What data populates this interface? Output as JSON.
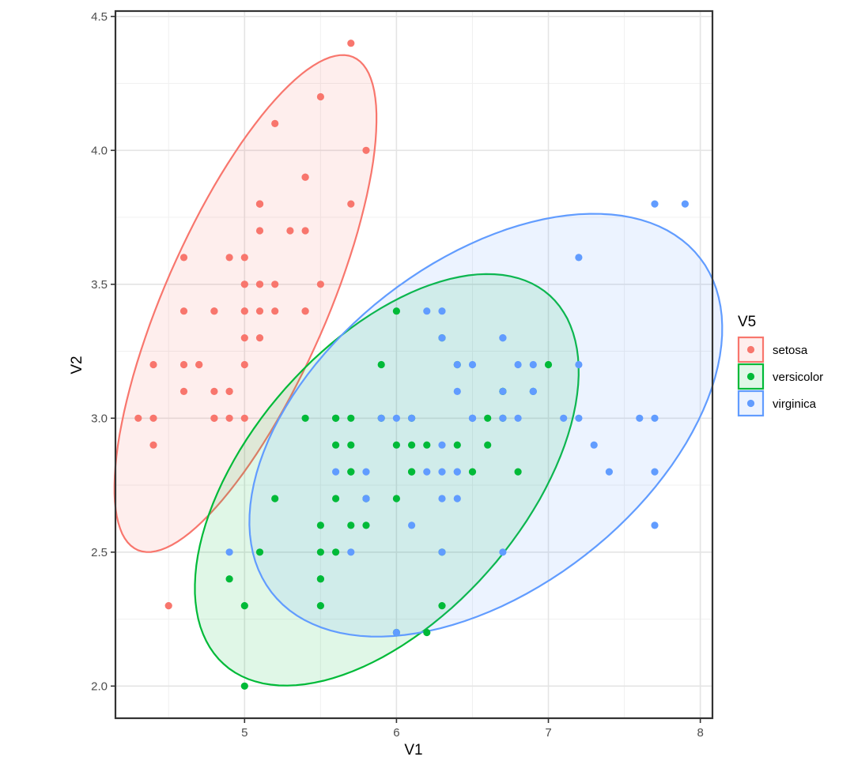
{
  "chart_data": {
    "type": "scatter",
    "xlabel": "V1",
    "ylabel": "V2",
    "xlim": [
      4.15,
      8.08
    ],
    "ylim": [
      1.88,
      4.52
    ],
    "x_ticks": [
      5,
      6,
      7,
      8
    ],
    "x_tick_labels": [
      "5",
      "6",
      "7",
      "8"
    ],
    "y_ticks": [
      2.0,
      2.5,
      3.0,
      3.5,
      4.0,
      4.5
    ],
    "y_tick_labels": [
      "2.0",
      "2.5",
      "3.0",
      "3.5",
      "4.0",
      "4.5"
    ],
    "grid": true,
    "legend": {
      "title": "V5",
      "position": "right"
    },
    "series": [
      {
        "name": "setosa",
        "color": "#F8766D",
        "ellipse": {
          "center": [
            5.006,
            3.428
          ],
          "cov": [
            [
              0.1242,
              0.0992
            ],
            [
              0.0992,
              0.1437
            ]
          ]
        },
        "points": [
          [
            5.1,
            3.5
          ],
          [
            4.9,
            3.0
          ],
          [
            4.7,
            3.2
          ],
          [
            4.6,
            3.1
          ],
          [
            5.0,
            3.6
          ],
          [
            5.4,
            3.9
          ],
          [
            4.6,
            3.4
          ],
          [
            5.0,
            3.4
          ],
          [
            4.4,
            2.9
          ],
          [
            4.9,
            3.1
          ],
          [
            5.4,
            3.7
          ],
          [
            4.8,
            3.4
          ],
          [
            4.8,
            3.0
          ],
          [
            4.3,
            3.0
          ],
          [
            5.8,
            4.0
          ],
          [
            5.7,
            4.4
          ],
          [
            5.4,
            3.9
          ],
          [
            5.1,
            3.5
          ],
          [
            5.7,
            3.8
          ],
          [
            5.1,
            3.8
          ],
          [
            5.4,
            3.4
          ],
          [
            5.1,
            3.7
          ],
          [
            4.6,
            3.6
          ],
          [
            5.1,
            3.3
          ],
          [
            4.8,
            3.4
          ],
          [
            5.0,
            3.0
          ],
          [
            5.0,
            3.4
          ],
          [
            5.2,
            3.5
          ],
          [
            5.2,
            3.4
          ],
          [
            4.7,
            3.2
          ],
          [
            4.8,
            3.1
          ],
          [
            5.4,
            3.4
          ],
          [
            5.2,
            4.1
          ],
          [
            5.5,
            4.2
          ],
          [
            4.9,
            3.1
          ],
          [
            5.0,
            3.2
          ],
          [
            5.5,
            3.5
          ],
          [
            4.9,
            3.6
          ],
          [
            4.4,
            3.0
          ],
          [
            5.1,
            3.4
          ],
          [
            5.0,
            3.5
          ],
          [
            4.5,
            2.3
          ],
          [
            4.4,
            3.2
          ],
          [
            5.0,
            3.5
          ],
          [
            5.1,
            3.8
          ],
          [
            4.8,
            3.0
          ],
          [
            5.1,
            3.8
          ],
          [
            4.6,
            3.2
          ],
          [
            5.3,
            3.7
          ],
          [
            5.0,
            3.3
          ]
        ]
      },
      {
        "name": "versicolor",
        "color": "#00BA38",
        "ellipse": {
          "center": [
            5.936,
            2.77
          ],
          "cov": [
            [
              0.2664,
              0.0852
            ],
            [
              0.0852,
              0.0985
            ]
          ]
        },
        "points": [
          [
            7.0,
            3.2
          ],
          [
            6.4,
            3.2
          ],
          [
            6.9,
            3.1
          ],
          [
            5.5,
            2.3
          ],
          [
            6.5,
            2.8
          ],
          [
            5.7,
            2.8
          ],
          [
            6.3,
            3.3
          ],
          [
            4.9,
            2.4
          ],
          [
            6.6,
            2.9
          ],
          [
            5.2,
            2.7
          ],
          [
            5.0,
            2.0
          ],
          [
            5.9,
            3.0
          ],
          [
            6.0,
            2.2
          ],
          [
            6.1,
            2.9
          ],
          [
            5.6,
            2.9
          ],
          [
            6.7,
            3.1
          ],
          [
            5.6,
            3.0
          ],
          [
            5.8,
            2.7
          ],
          [
            6.2,
            2.2
          ],
          [
            5.6,
            2.5
          ],
          [
            5.9,
            3.2
          ],
          [
            6.1,
            2.8
          ],
          [
            6.3,
            2.5
          ],
          [
            6.1,
            2.8
          ],
          [
            6.4,
            2.9
          ],
          [
            6.6,
            3.0
          ],
          [
            6.8,
            2.8
          ],
          [
            6.7,
            3.0
          ],
          [
            6.0,
            2.9
          ],
          [
            5.7,
            2.6
          ],
          [
            5.5,
            2.4
          ],
          [
            5.5,
            2.4
          ],
          [
            5.8,
            2.7
          ],
          [
            6.0,
            2.7
          ],
          [
            5.4,
            3.0
          ],
          [
            6.0,
            3.4
          ],
          [
            6.7,
            3.1
          ],
          [
            6.3,
            2.3
          ],
          [
            5.6,
            3.0
          ],
          [
            5.5,
            2.5
          ],
          [
            5.5,
            2.6
          ],
          [
            6.1,
            3.0
          ],
          [
            5.8,
            2.6
          ],
          [
            5.0,
            2.3
          ],
          [
            5.6,
            2.7
          ],
          [
            5.7,
            3.0
          ],
          [
            5.7,
            2.9
          ],
          [
            6.2,
            2.9
          ],
          [
            5.1,
            2.5
          ],
          [
            5.7,
            2.8
          ]
        ]
      },
      {
        "name": "virginica",
        "color": "#619CFF",
        "ellipse": {
          "center": [
            6.588,
            2.974
          ],
          "cov": [
            [
              0.4043,
              0.0938
            ],
            [
              0.0938,
              0.104
            ]
          ]
        },
        "points": [
          [
            6.3,
            3.3
          ],
          [
            5.8,
            2.7
          ],
          [
            7.1,
            3.0
          ],
          [
            6.3,
            2.9
          ],
          [
            6.5,
            3.0
          ],
          [
            7.6,
            3.0
          ],
          [
            4.9,
            2.5
          ],
          [
            7.3,
            2.9
          ],
          [
            6.7,
            2.5
          ],
          [
            7.2,
            3.6
          ],
          [
            6.5,
            3.2
          ],
          [
            6.4,
            2.7
          ],
          [
            6.8,
            3.0
          ],
          [
            5.7,
            2.5
          ],
          [
            5.8,
            2.8
          ],
          [
            6.4,
            3.2
          ],
          [
            6.5,
            3.0
          ],
          [
            7.7,
            3.8
          ],
          [
            7.7,
            2.6
          ],
          [
            6.0,
            2.2
          ],
          [
            6.9,
            3.2
          ],
          [
            5.6,
            2.8
          ],
          [
            7.7,
            2.8
          ],
          [
            6.3,
            2.7
          ],
          [
            6.7,
            3.3
          ],
          [
            7.2,
            3.2
          ],
          [
            6.2,
            2.8
          ],
          [
            6.1,
            3.0
          ],
          [
            6.4,
            2.8
          ],
          [
            7.2,
            3.0
          ],
          [
            7.4,
            2.8
          ],
          [
            7.9,
            3.8
          ],
          [
            6.4,
            2.8
          ],
          [
            6.3,
            2.8
          ],
          [
            6.1,
            2.6
          ],
          [
            7.7,
            3.0
          ],
          [
            6.3,
            3.4
          ],
          [
            6.4,
            3.1
          ],
          [
            6.0,
            3.0
          ],
          [
            6.9,
            3.1
          ],
          [
            6.7,
            3.1
          ],
          [
            6.9,
            3.1
          ],
          [
            5.8,
            2.7
          ],
          [
            6.8,
            3.2
          ],
          [
            6.7,
            3.3
          ],
          [
            6.7,
            3.0
          ],
          [
            6.3,
            2.5
          ],
          [
            6.5,
            3.0
          ],
          [
            6.2,
            3.4
          ],
          [
            5.9,
            3.0
          ]
        ]
      }
    ]
  }
}
